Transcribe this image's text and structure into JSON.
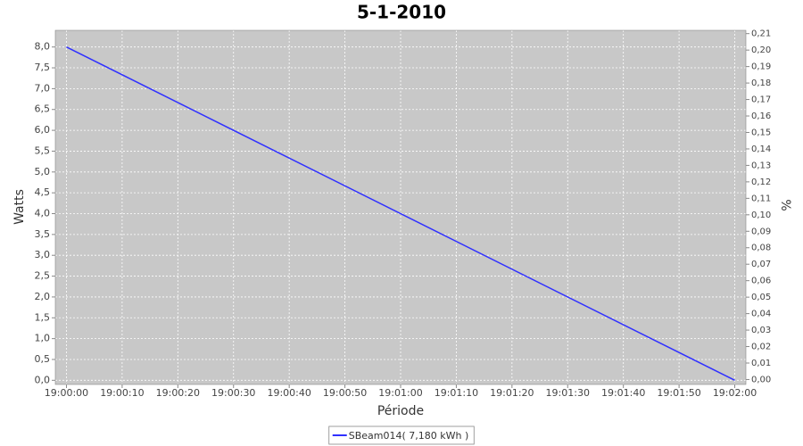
{
  "chart_data": {
    "type": "line",
    "title": "5-1-2010",
    "x_label": "Période",
    "y_label": "Watts",
    "y2_label": "%",
    "x": [
      "19:00:00",
      "19:02:00"
    ],
    "series": [
      {
        "name": "SBeam014( 7,180 kWh )",
        "color": "#3030ff",
        "values": [
          8.0,
          0.0
        ]
      }
    ],
    "xlim": [
      "18:59:58",
      "19:02:02"
    ],
    "xticks": [
      "19:00:00",
      "19:00:10",
      "19:00:20",
      "19:00:30",
      "19:00:40",
      "19:00:50",
      "19:01:00",
      "19:01:10",
      "19:01:20",
      "19:01:30",
      "19:01:40",
      "19:01:50",
      "19:02:00"
    ],
    "ylim": [
      -0.1,
      8.4
    ],
    "yticks": [
      {
        "value": 0,
        "label": "0,0"
      },
      {
        "value": 0.5,
        "label": "0,5"
      },
      {
        "value": 1,
        "label": "1,0"
      },
      {
        "value": 1.5,
        "label": "1,5"
      },
      {
        "value": 2,
        "label": "2,0"
      },
      {
        "value": 2.5,
        "label": "2,5"
      },
      {
        "value": 3,
        "label": "3,0"
      },
      {
        "value": 3.5,
        "label": "3,5"
      },
      {
        "value": 4,
        "label": "4,0"
      },
      {
        "value": 4.5,
        "label": "4,5"
      },
      {
        "value": 5,
        "label": "5,0"
      },
      {
        "value": 5.5,
        "label": "5,5"
      },
      {
        "value": 6,
        "label": "6,0"
      },
      {
        "value": 6.5,
        "label": "6,5"
      },
      {
        "value": 7,
        "label": "7,0"
      },
      {
        "value": 7.5,
        "label": "7,5"
      },
      {
        "value": 8,
        "label": "8,0"
      }
    ],
    "y2lim": [
      -0.003,
      0.212
    ],
    "y2ticks": [
      {
        "value": 0,
        "label": "0,00"
      },
      {
        "value": 0.01,
        "label": "0,01"
      },
      {
        "value": 0.02,
        "label": "0,02"
      },
      {
        "value": 0.03,
        "label": "0,03"
      },
      {
        "value": 0.04,
        "label": "0,04"
      },
      {
        "value": 0.05,
        "label": "0,05"
      },
      {
        "value": 0.06,
        "label": "0,06"
      },
      {
        "value": 0.07,
        "label": "0,07"
      },
      {
        "value": 0.08,
        "label": "0,08"
      },
      {
        "value": 0.09,
        "label": "0,09"
      },
      {
        "value": 0.1,
        "label": "0,10"
      },
      {
        "value": 0.11,
        "label": "0,11"
      },
      {
        "value": 0.12,
        "label": "0,12"
      },
      {
        "value": 0.13,
        "label": "0,13"
      },
      {
        "value": 0.14,
        "label": "0,14"
      },
      {
        "value": 0.15,
        "label": "0,15"
      },
      {
        "value": 0.16,
        "label": "0,16"
      },
      {
        "value": 0.17,
        "label": "0,17"
      },
      {
        "value": 0.18,
        "label": "0,18"
      },
      {
        "value": 0.19,
        "label": "0,19"
      },
      {
        "value": 0.2,
        "label": "0,20"
      },
      {
        "value": 0.21,
        "label": "0,21"
      }
    ],
    "grid": true,
    "legend": "bottom"
  }
}
